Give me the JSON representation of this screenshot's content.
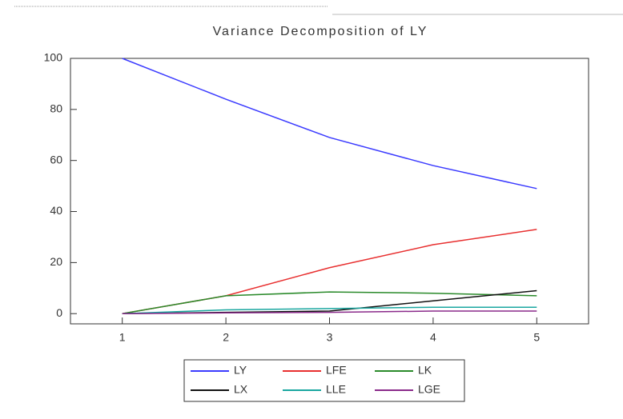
{
  "chart_data": {
    "type": "line",
    "title": "Variance Decomposition of LY",
    "x": [
      1,
      2,
      3,
      4,
      5
    ],
    "series": [
      {
        "name": "LY",
        "color": "#3b3bff",
        "values": [
          100,
          84,
          69,
          58,
          49
        ]
      },
      {
        "name": "LFE",
        "color": "#e83030",
        "values": [
          0,
          7,
          18,
          27,
          33
        ]
      },
      {
        "name": "LK",
        "color": "#2a8a2a",
        "values": [
          0,
          7,
          8.5,
          8,
          7
        ]
      },
      {
        "name": "LX",
        "color": "#111111",
        "values": [
          0,
          0.5,
          1,
          5,
          9
        ]
      },
      {
        "name": "LLE",
        "color": "#1aa7a0",
        "values": [
          0,
          1.5,
          2,
          2.5,
          2.5
        ]
      },
      {
        "name": "LGE",
        "color": "#8a2a8a",
        "values": [
          0,
          0.3,
          0.5,
          1,
          1
        ]
      }
    ],
    "xlim": [
      0.5,
      5.5
    ],
    "xticks": [
      1,
      2,
      3,
      4,
      5
    ],
    "ylim": [
      -4,
      100
    ],
    "yticks": [
      0,
      20,
      40,
      60,
      80,
      100
    ]
  }
}
